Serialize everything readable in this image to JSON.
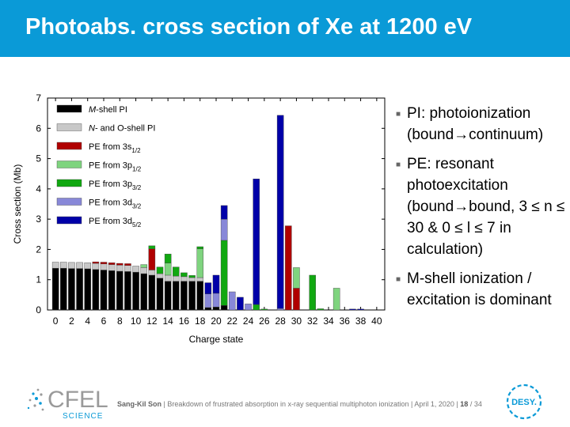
{
  "slide": {
    "title": "Photoabs. cross section of Xe at 1200 eV"
  },
  "bullets": [
    "PI: photoionization (bound→continuum)",
    "PE: resonant photoexcitation (bound→bound, 3 ≤ n ≤ 30 & 0 ≤ l ≤ 7 in calculation)",
    "M-shell ionization / excitation is dominant"
  ],
  "footer": {
    "author": "Sang-Kil Son",
    "separator1": "|",
    "text": "Breakdown of frustrated absorption in x-ray sequential multiphoton ionization | April 1, 2020 |",
    "page": "18",
    "total": "/ 34"
  },
  "logos": {
    "cfel": "CFEL",
    "cfel_sub": "SCIENCE",
    "desy": "DESY."
  },
  "colors": {
    "accent": "#0a9ad7",
    "m_pi": "#000000",
    "no_pi": "#c8c8c8",
    "pe_3s": "#b00000",
    "pe_3p12": "#7fd47f",
    "pe_3p32": "#11a811",
    "pe_3d32": "#8888d8",
    "pe_3d52": "#0000a8"
  },
  "chart_data": {
    "type": "bar",
    "stacked": true,
    "xlabel": "Charge state",
    "ylabel": "Cross section (Mb)",
    "ylim": [
      0,
      7
    ],
    "xlim": [
      -1,
      41
    ],
    "yticks": [
      "0",
      "1",
      "2",
      "3",
      "4",
      "5",
      "6",
      "7"
    ],
    "xticks": [
      "0",
      "2",
      "4",
      "6",
      "8",
      "10",
      "12",
      "14",
      "16",
      "18",
      "20",
      "22",
      "24",
      "26",
      "28",
      "30",
      "32",
      "34",
      "36",
      "38",
      "40"
    ],
    "legend_position": "top-left",
    "legend": [
      {
        "key": "m_pi",
        "pre": "",
        "em": "M",
        "post": "-shell PI",
        "sub": ""
      },
      {
        "key": "no_pi",
        "pre": "",
        "em": "N",
        "post": "- and O-shell PI",
        "sub": ""
      },
      {
        "key": "pe_3s",
        "pre": "PE from 3s",
        "em": "",
        "post": "",
        "sub": "1/2"
      },
      {
        "key": "pe_3p12",
        "pre": "PE from 3p",
        "em": "",
        "post": "",
        "sub": "1/2"
      },
      {
        "key": "pe_3p32",
        "pre": "PE from 3p",
        "em": "",
        "post": "",
        "sub": "3/2"
      },
      {
        "key": "pe_3d32",
        "pre": "PE from 3d",
        "em": "",
        "post": "",
        "sub": "3/2"
      },
      {
        "key": "pe_3d52",
        "pre": "PE from 3d",
        "em": "",
        "post": "",
        "sub": "5/2"
      }
    ],
    "series_order": [
      "m_pi",
      "no_pi",
      "pe_3s",
      "pe_3p12",
      "pe_3p32",
      "pe_3d32",
      "pe_3d52"
    ],
    "bars": [
      {
        "x": 0,
        "m_pi": 1.38,
        "no_pi": 0.2
      },
      {
        "x": 1,
        "m_pi": 1.38,
        "no_pi": 0.2
      },
      {
        "x": 2,
        "m_pi": 1.37,
        "no_pi": 0.2
      },
      {
        "x": 3,
        "m_pi": 1.37,
        "no_pi": 0.2
      },
      {
        "x": 4,
        "m_pi": 1.36,
        "no_pi": 0.2
      },
      {
        "x": 5,
        "m_pi": 1.34,
        "no_pi": 0.2,
        "pe_3s": 0.05
      },
      {
        "x": 6,
        "m_pi": 1.32,
        "no_pi": 0.2,
        "pe_3s": 0.06
      },
      {
        "x": 7,
        "m_pi": 1.3,
        "no_pi": 0.2,
        "pe_3s": 0.06
      },
      {
        "x": 8,
        "m_pi": 1.28,
        "no_pi": 0.2,
        "pe_3s": 0.06
      },
      {
        "x": 9,
        "m_pi": 1.27,
        "no_pi": 0.2,
        "pe_3s": 0.06
      },
      {
        "x": 10,
        "m_pi": 1.25,
        "no_pi": 0.2
      },
      {
        "x": 11,
        "m_pi": 1.2,
        "no_pi": 0.2,
        "pe_3p12": 0.1
      },
      {
        "x": 12,
        "m_pi": 1.15,
        "no_pi": 0.17,
        "pe_3s": 0.7,
        "pe_3p32": 0.1
      },
      {
        "x": 13,
        "m_pi": 1.05,
        "no_pi": 0.15,
        "pe_3p32": 0.22
      },
      {
        "x": 14,
        "m_pi": 0.95,
        "no_pi": 0.2,
        "pe_3p12": 0.4,
        "pe_3p32": 0.3
      },
      {
        "x": 15,
        "m_pi": 0.95,
        "no_pi": 0.17,
        "pe_3p32": 0.3
      },
      {
        "x": 16,
        "m_pi": 0.95,
        "no_pi": 0.15,
        "pe_3p32": 0.13
      },
      {
        "x": 17,
        "m_pi": 0.95,
        "no_pi": 0.12,
        "pe_3p32": 0.07
      },
      {
        "x": 18,
        "m_pi": 0.95,
        "no_pi": 0.12,
        "pe_3p12": 0.95,
        "pe_3p32": 0.07
      },
      {
        "x": 19,
        "m_pi": 0.08,
        "pe_3d32": 0.45,
        "pe_3d52": 0.37
      },
      {
        "x": 20,
        "m_pi": 0.1,
        "pe_3d32": 0.45,
        "pe_3d52": 0.6
      },
      {
        "x": 21,
        "m_pi": 0.15,
        "pe_3p32": 2.15,
        "pe_3d32": 0.7,
        "pe_3d52": 0.45
      },
      {
        "x": 22,
        "pe_3d32": 0.6
      },
      {
        "x": 23,
        "pe_3d52": 0.42
      },
      {
        "x": 24,
        "pe_3d32": 0.2
      },
      {
        "x": 25,
        "pe_3p32": 0.18,
        "pe_3d52": 4.15
      },
      {
        "x": 26,
        "pe_3p32": 0.03
      },
      {
        "x": 28,
        "pe_3d32": 0.05,
        "pe_3d52": 6.38
      },
      {
        "x": 29,
        "pe_3s": 2.78
      },
      {
        "x": 30,
        "pe_3s": 0.72,
        "pe_3p12": 0.68
      },
      {
        "x": 32,
        "pe_3p32": 1.15
      },
      {
        "x": 33,
        "pe_3p32": 0.04
      },
      {
        "x": 35,
        "pe_3p12": 0.72
      },
      {
        "x": 37,
        "pe_3d52": 0.03
      },
      {
        "x": 38,
        "pe_3d52": 0.03
      }
    ]
  }
}
